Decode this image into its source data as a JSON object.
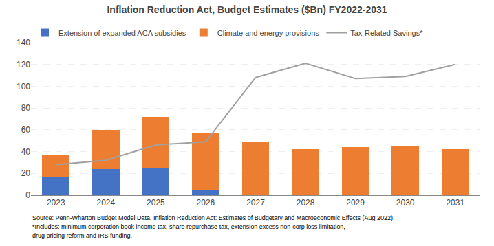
{
  "chart_data": {
    "type": "bar",
    "title": "Inflation Reduction Act, Budget Estimates ($Bn) FY2022-2031",
    "categories": [
      "2023",
      "2024",
      "2025",
      "2026",
      "2027",
      "2028",
      "2029",
      "2030",
      "2031"
    ],
    "stacked": true,
    "series": [
      {
        "name": "Extension of expanded ACA subsidies",
        "color": "#4472C4",
        "values": [
          17,
          24,
          25,
          5,
          0,
          0,
          0,
          0,
          0
        ]
      },
      {
        "name": "Climate and energy provisions",
        "color": "#ED7D31",
        "values": [
          20,
          36,
          47,
          52,
          49,
          42,
          44,
          45,
          42
        ]
      },
      {
        "name": "Tax-Related Savings*",
        "type": "line",
        "color": "#A0A0A0",
        "values": [
          28,
          32,
          46,
          49,
          108,
          121,
          107,
          109,
          120
        ]
      }
    ],
    "ylim": [
      0,
      140
    ],
    "yticks": [
      0,
      20,
      40,
      60,
      80,
      100,
      120,
      140
    ],
    "grid": true,
    "legend": "upper left",
    "annotations": [
      "Source: Penn-Wharton Budget Model Data, Inflation Reduction Act: Estimates of Budgetary and Macroeconomic Effects (Aug 2022).",
      "*Includes: minimum corporation book income tax, share repurchase tax, extension excess non-corp loss limitation,",
      "drug pricing reform and IRS funding."
    ]
  }
}
